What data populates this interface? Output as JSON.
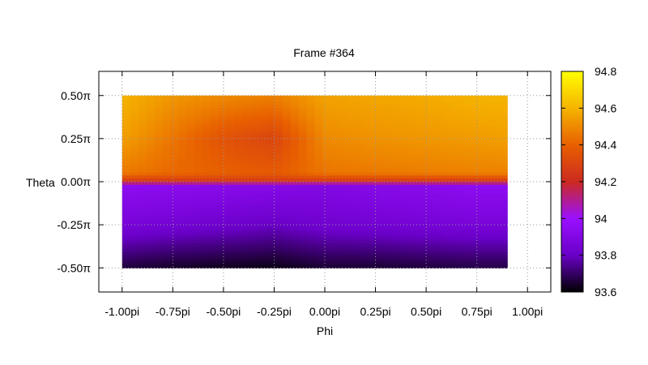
{
  "chart_data": {
    "type": "heatmap",
    "title": "Frame #364",
    "xlabel": "Phi",
    "ylabel": "Theta",
    "xlim": [
      -1.115,
      1.115
    ],
    "ylim": [
      -0.64,
      0.64
    ],
    "xticks": [
      {
        "v": -1.0,
        "label": "-1.00pi"
      },
      {
        "v": -0.75,
        "label": "-0.75pi"
      },
      {
        "v": -0.5,
        "label": "-0.50pi"
      },
      {
        "v": -0.25,
        "label": "-0.25pi"
      },
      {
        "v": 0.0,
        "label": "0.00pi"
      },
      {
        "v": 0.25,
        "label": "0.25pi"
      },
      {
        "v": 0.5,
        "label": "0.50pi"
      },
      {
        "v": 0.75,
        "label": "0.75pi"
      },
      {
        "v": 1.0,
        "label": "1.00pi"
      }
    ],
    "yticks": [
      {
        "v": 0.5,
        "label": "0.50π"
      },
      {
        "v": 0.25,
        "label": "0.25π"
      },
      {
        "v": 0.0,
        "label": "0.00π"
      },
      {
        "v": -0.25,
        "label": "-0.25π"
      },
      {
        "v": -0.5,
        "label": "-0.50π"
      }
    ],
    "grid": true,
    "colorbar": {
      "min": 93.6,
      "max": 94.8,
      "ticks": [
        {
          "v": 93.6,
          "label": "93.6"
        },
        {
          "v": 93.8,
          "label": "93.8"
        },
        {
          "v": 94.0,
          "label": "94"
        },
        {
          "v": 94.2,
          "label": "94.2"
        },
        {
          "v": 94.4,
          "label": "94.4"
        },
        {
          "v": 94.6,
          "label": "94.6"
        },
        {
          "v": 94.8,
          "label": "94.8"
        }
      ],
      "colormap": [
        "#000000",
        "#6a00c8",
        "#9a10ff",
        "#cc2a20",
        "#e86000",
        "#f5b400",
        "#ffff00"
      ]
    },
    "x": [
      -1.0,
      -0.75,
      -0.5,
      -0.25,
      0.0,
      0.25,
      0.5,
      0.75,
      0.9
    ],
    "y": [
      0.5,
      0.25,
      0.05,
      0.0,
      -0.02,
      -0.25,
      -0.5
    ],
    "z": [
      [
        94.6,
        94.53,
        94.5,
        94.48,
        94.56,
        94.57,
        94.58,
        94.6,
        94.6
      ],
      [
        94.55,
        94.45,
        94.35,
        94.3,
        94.5,
        94.52,
        94.53,
        94.54,
        94.55
      ],
      [
        94.46,
        94.42,
        94.4,
        94.38,
        94.45,
        94.46,
        94.47,
        94.48,
        94.48
      ],
      [
        94.25,
        94.25,
        94.25,
        94.25,
        94.25,
        94.25,
        94.25,
        94.25,
        94.25
      ],
      [
        93.95,
        93.94,
        93.93,
        93.92,
        93.9,
        93.92,
        93.93,
        93.95,
        93.95
      ],
      [
        93.86,
        93.84,
        93.82,
        93.8,
        93.83,
        93.84,
        93.85,
        93.86,
        93.86
      ],
      [
        93.66,
        93.64,
        93.63,
        93.62,
        93.65,
        93.65,
        93.66,
        93.67,
        93.67
      ]
    ]
  }
}
